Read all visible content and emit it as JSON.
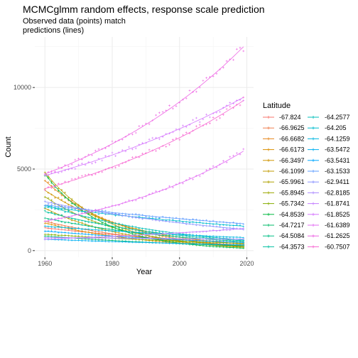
{
  "chart_data": {
    "type": "line",
    "title": "MCMCglmm random effects, response scale prediction",
    "subtitle_lines": [
      "Observed data (points) match",
      "predictions (lines)"
    ],
    "xlabel": "Year",
    "ylabel": "Count",
    "xlim": [
      1957,
      2022
    ],
    "ylim": [
      -400,
      13100
    ],
    "x_ticks": [
      1960,
      1980,
      2000,
      2020
    ],
    "y_ticks": [
      0,
      5000,
      10000
    ],
    "grid": true,
    "legend_placement": "right",
    "legend_title": "Latitude",
    "points_marker": "plus",
    "year_range": [
      1960,
      2019
    ],
    "series": [
      {
        "name": "-67.824",
        "color": "#F8766D",
        "start": 1400,
        "end": 500
      },
      {
        "name": "-66.9625",
        "color": "#F07E4E",
        "start": 1800,
        "end": 350
      },
      {
        "name": "-66.6682",
        "color": "#E7861B",
        "start": 4300,
        "end": 300
      },
      {
        "name": "-66.6173",
        "color": "#DB8E00",
        "start": 1700,
        "end": 250
      },
      {
        "name": "-66.3497",
        "color": "#CF9400",
        "start": 3700,
        "end": 400
      },
      {
        "name": "-66.1099",
        "color": "#C09B00",
        "start": 2600,
        "end": 250
      },
      {
        "name": "-65.9961",
        "color": "#AFA100",
        "start": 4800,
        "end": 200
      },
      {
        "name": "-65.8945",
        "color": "#9CA700",
        "start": 3300,
        "end": 280
      },
      {
        "name": "-65.7342",
        "color": "#85AD00",
        "start": 1000,
        "end": 450
      },
      {
        "name": "-64.8539",
        "color": "#00B83F",
        "start": 4700,
        "end": 150
      },
      {
        "name": "-64.7217",
        "color": "#00BB67",
        "start": 900,
        "end": 300
      },
      {
        "name": "-64.5084",
        "color": "#00BE85",
        "start": 2000,
        "end": 550
      },
      {
        "name": "-64.3573",
        "color": "#00C0A0",
        "start": 2400,
        "end": 600
      },
      {
        "name": "-64.2577",
        "color": "#00BFB8",
        "start": 2800,
        "end": 650
      },
      {
        "name": "-64.205",
        "color": "#00BCCE",
        "start": 2700,
        "end": 1500
      },
      {
        "name": "-64.1259",
        "color": "#00B7E1",
        "start": 1500,
        "end": 800
      },
      {
        "name": "-63.5472",
        "color": "#00B0F2",
        "start": 700,
        "end": 350
      },
      {
        "name": "-63.5431",
        "color": "#00A7FF",
        "start": 1200,
        "end": 500
      },
      {
        "name": "-63.1533",
        "color": "#5E9CFF",
        "start": 2800,
        "end": 1650
      },
      {
        "name": "-62.9411",
        "color": "#8B93FF",
        "start": 3000,
        "end": 1300
      },
      {
        "name": "-62.8185",
        "color": "#AB89FF",
        "start": 800,
        "end": 700
      },
      {
        "name": "-61.8741",
        "color": "#C37EFF",
        "start": 700,
        "end": 1350
      },
      {
        "name": "-61.8525",
        "color": "#D575FE",
        "start": 4600,
        "end": 9400
      },
      {
        "name": "-61.6389",
        "color": "#E36CF3",
        "start": 1800,
        "end": 6100
      },
      {
        "name": "-61.2625",
        "color": "#EE66E4",
        "start": 4700,
        "end": 12500
      },
      {
        "name": "-60.7507",
        "color": "#F764D1",
        "start": 3800,
        "end": 9200
      }
    ]
  }
}
